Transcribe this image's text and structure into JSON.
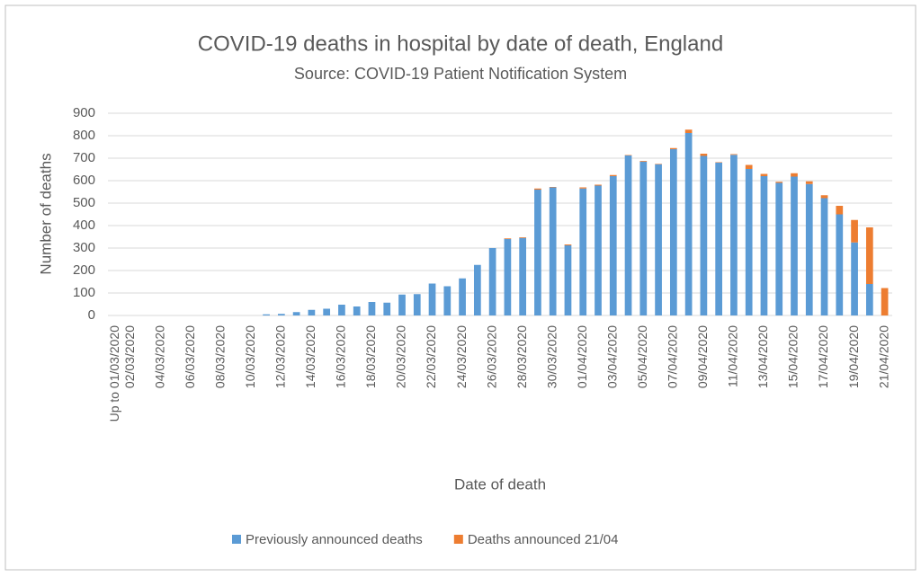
{
  "chart_data": {
    "type": "stacked_bar",
    "title": "COVID-19 deaths in hospital by date of death, England",
    "subtitle": "Source: COVID-19 Patient Notification System",
    "y_label": "Number of deaths",
    "x_label": "Date of death",
    "categories": [
      "Up to 01/03/2020",
      "02/03/2020",
      null,
      "04/03/2020",
      null,
      "06/03/2020",
      null,
      "08/03/2020",
      null,
      "10/03/2020",
      null,
      "12/03/2020",
      null,
      "14/03/2020",
      null,
      "16/03/2020",
      null,
      "18/03/2020",
      null,
      "20/03/2020",
      null,
      "22/03/2020",
      null,
      "24/03/2020",
      null,
      "26/03/2020",
      null,
      "28/03/2020",
      null,
      "30/03/2020",
      null,
      "01/04/2020",
      null,
      "03/04/2020",
      null,
      "05/04/2020",
      null,
      "07/04/2020",
      null,
      "09/04/2020",
      null,
      "11/04/2020",
      null,
      "13/04/2020",
      null,
      "15/04/2020",
      null,
      "17/04/2020",
      null,
      "19/04/2020",
      null,
      "21/04/2020"
    ],
    "series": [
      {
        "name": "Previously announced deaths",
        "color": "#5b9bd5",
        "values": [
          0,
          0,
          0,
          0,
          0,
          0,
          0,
          0,
          0,
          0,
          5,
          7,
          15,
          25,
          30,
          48,
          40,
          60,
          57,
          93,
          95,
          142,
          130,
          165,
          225,
          300,
          340,
          345,
          560,
          570,
          312,
          565,
          578,
          620,
          712,
          685,
          673,
          740,
          812,
          710,
          680,
          715,
          652,
          620,
          590,
          618,
          585,
          522,
          450,
          325,
          140,
          0
        ]
      },
      {
        "name": "Deaths announced 21/04",
        "color": "#ed7d31",
        "values": [
          0,
          0,
          0,
          0,
          0,
          0,
          0,
          0,
          0,
          0,
          0,
          0,
          0,
          0,
          0,
          0,
          0,
          0,
          0,
          0,
          0,
          0,
          0,
          0,
          0,
          0,
          3,
          3,
          5,
          2,
          4,
          5,
          4,
          5,
          2,
          3,
          2,
          5,
          15,
          10,
          2,
          3,
          18,
          10,
          5,
          15,
          12,
          13,
          38,
          100,
          252,
          122
        ]
      }
    ],
    "ylim": [
      0,
      900
    ],
    "yticks": [
      0,
      100,
      200,
      300,
      400,
      500,
      600,
      700,
      800,
      900
    ],
    "grid": true,
    "legend": "bottom"
  }
}
